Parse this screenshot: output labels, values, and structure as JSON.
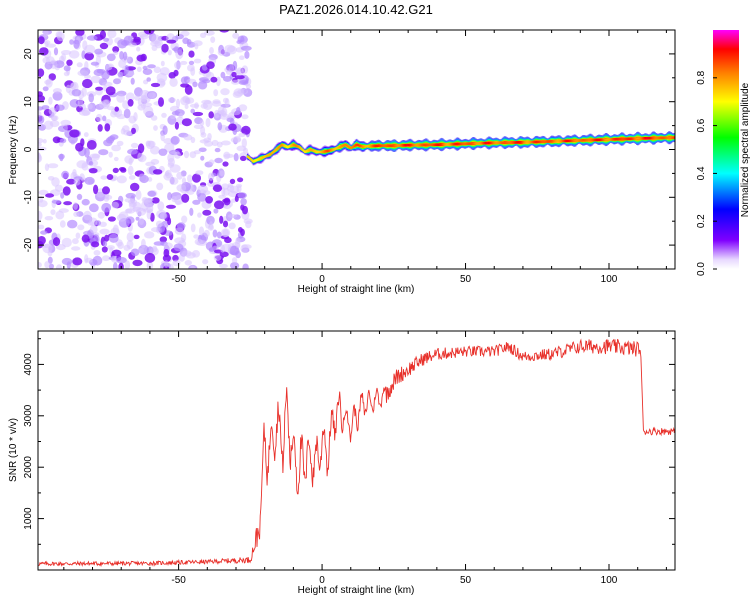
{
  "title": "PAZ1.2026.014.10.42.G21",
  "chart_data": [
    {
      "type": "heatmap",
      "title": "PAZ1.2026.014.10.42.G21",
      "xlabel": "Height of straight line (km)",
      "ylabel": "Frequency (Hz)",
      "xlim": [
        -99,
        123
      ],
      "ylim": [
        -25,
        25
      ],
      "xticks": [
        -50,
        0,
        50,
        100
      ],
      "yticks": [
        -20,
        -10,
        0,
        10,
        20
      ],
      "colorbar": {
        "label": "Normalized spectral amplitude",
        "range": [
          0,
          1
        ],
        "ticks": [
          0.0,
          0.2,
          0.4,
          0.6,
          0.8
        ],
        "colors": [
          "#ffffff",
          "#8000ff",
          "#0000ff",
          "#00ffff",
          "#00ff00",
          "#ffff00",
          "#ff8000",
          "#ff0000",
          "#ff00ff"
        ]
      },
      "noise_region": {
        "x": [
          -99,
          -27
        ],
        "amplitude": 0.2
      },
      "ridge": {
        "x": [
          -26,
          -24,
          -22,
          -20,
          -18,
          -16,
          -14,
          -12,
          -10,
          -8,
          -6,
          -4,
          -2,
          0,
          2,
          4,
          6,
          8,
          10,
          12,
          14,
          16,
          20,
          25,
          30,
          40,
          50,
          60,
          70,
          80,
          90,
          100,
          110,
          123
        ],
        "frequency": [
          -1.5,
          -2.5,
          -2.0,
          -1.5,
          -1.0,
          0.0,
          1.0,
          0.5,
          1.0,
          0.5,
          -0.5,
          0.0,
          -0.5,
          -0.5,
          -0.3,
          0.0,
          0.5,
          1.0,
          0.3,
          1.0,
          0.6,
          0.7,
          0.8,
          0.8,
          0.9,
          1.0,
          1.2,
          1.4,
          1.5,
          1.7,
          1.9,
          2.1,
          2.3,
          2.5
        ],
        "amplitude": [
          0.45,
          0.6,
          0.65,
          0.55,
          0.7,
          0.6,
          0.75,
          0.65,
          0.7,
          0.6,
          0.55,
          0.7,
          0.65,
          0.7,
          0.75,
          0.7,
          0.8,
          0.75,
          0.8,
          0.85,
          0.8,
          0.85,
          0.88,
          0.95,
          0.9,
          0.92,
          0.9,
          0.9,
          0.92,
          0.88,
          0.9,
          0.92,
          0.95,
          0.9
        ]
      }
    },
    {
      "type": "line",
      "xlabel": "Height of straight line (km)",
      "ylabel": "SNR (10 * v/v)",
      "xlim": [
        -99,
        123
      ],
      "ylim": [
        0,
        4650
      ],
      "xticks": [
        -50,
        0,
        50,
        100
      ],
      "yticks": [
        1000,
        2000,
        3000,
        4000
      ],
      "series": [
        {
          "name": "SNR",
          "color": "#e8302a",
          "x": [
            -99,
            -60,
            -40,
            -25,
            -22,
            -21,
            -20,
            -18,
            -16,
            -14,
            -12,
            -10,
            -8,
            -6,
            -4,
            -2,
            0,
            2,
            4,
            6,
            8,
            10,
            14,
            18,
            22,
            26,
            30,
            35,
            40,
            50,
            60,
            65,
            70,
            80,
            90,
            100,
            110,
            111,
            112,
            123
          ],
          "y": [
            120,
            130,
            160,
            200,
            800,
            1700,
            2300,
            2400,
            2900,
            2500,
            3000,
            2200,
            2000,
            2100,
            2200,
            2100,
            2500,
            2300,
            2900,
            3100,
            3000,
            2800,
            3200,
            3300,
            3400,
            3750,
            3900,
            4100,
            4200,
            4250,
            4250,
            4350,
            4150,
            4200,
            4350,
            4350,
            4300,
            4300,
            2700,
            2700
          ],
          "noise": [
            40,
            40,
            40,
            60,
            300,
            500,
            600,
            600,
            550,
            600,
            650,
            600,
            550,
            550,
            500,
            500,
            450,
            450,
            400,
            400,
            350,
            300,
            260,
            230,
            200,
            170,
            150,
            130,
            120,
            110,
            110,
            110,
            110,
            120,
            140,
            150,
            150,
            80,
            70,
            70
          ]
        }
      ]
    }
  ]
}
